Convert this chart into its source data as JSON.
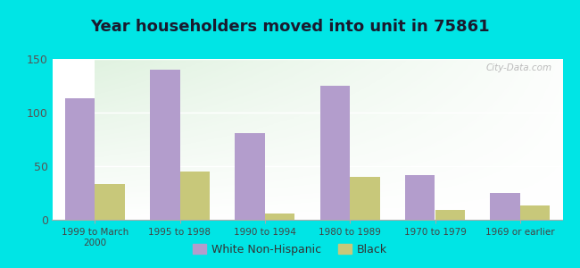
{
  "title": "Year householders moved into unit in 75861",
  "categories": [
    "1999 to March\n2000",
    "1995 to 1998",
    "1990 to 1994",
    "1980 to 1989",
    "1970 to 1979",
    "1969 or earlier"
  ],
  "white_values": [
    113,
    140,
    81,
    125,
    42,
    25
  ],
  "black_values": [
    33,
    45,
    6,
    40,
    9,
    13
  ],
  "white_color": "#b39dcc",
  "black_color": "#c8c87a",
  "ylim": [
    0,
    150
  ],
  "yticks": [
    0,
    50,
    100,
    150
  ],
  "background_color": "#00e5e5",
  "legend_labels": [
    "White Non-Hispanic",
    "Black"
  ],
  "title_fontsize": 13,
  "bar_width": 0.35,
  "watermark": "City-Data.com"
}
